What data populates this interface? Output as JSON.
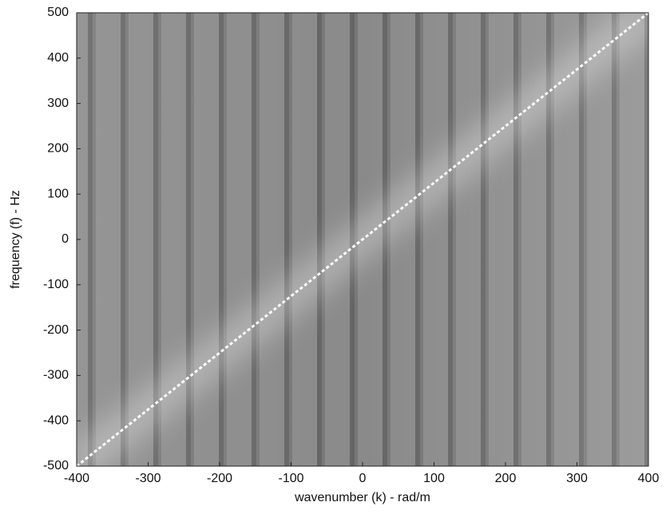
{
  "chart_data": {
    "type": "line",
    "x_label": "wavenumber (k) - rad/m",
    "y_label": "frequency (f) - Hz",
    "xlim": [
      -400,
      400
    ],
    "xticks": [
      -400,
      -300,
      -200,
      -100,
      0,
      100,
      200,
      300,
      400
    ],
    "ylim": [
      -500,
      500
    ],
    "yticks": [
      -500,
      -400,
      -300,
      -200,
      -100,
      0,
      100,
      200,
      300,
      400,
      500
    ],
    "x": [
      -400,
      400
    ],
    "series": [
      {
        "color": "#ffffff",
        "values": [
          -500,
          500
        ]
      }
    ]
  }
}
